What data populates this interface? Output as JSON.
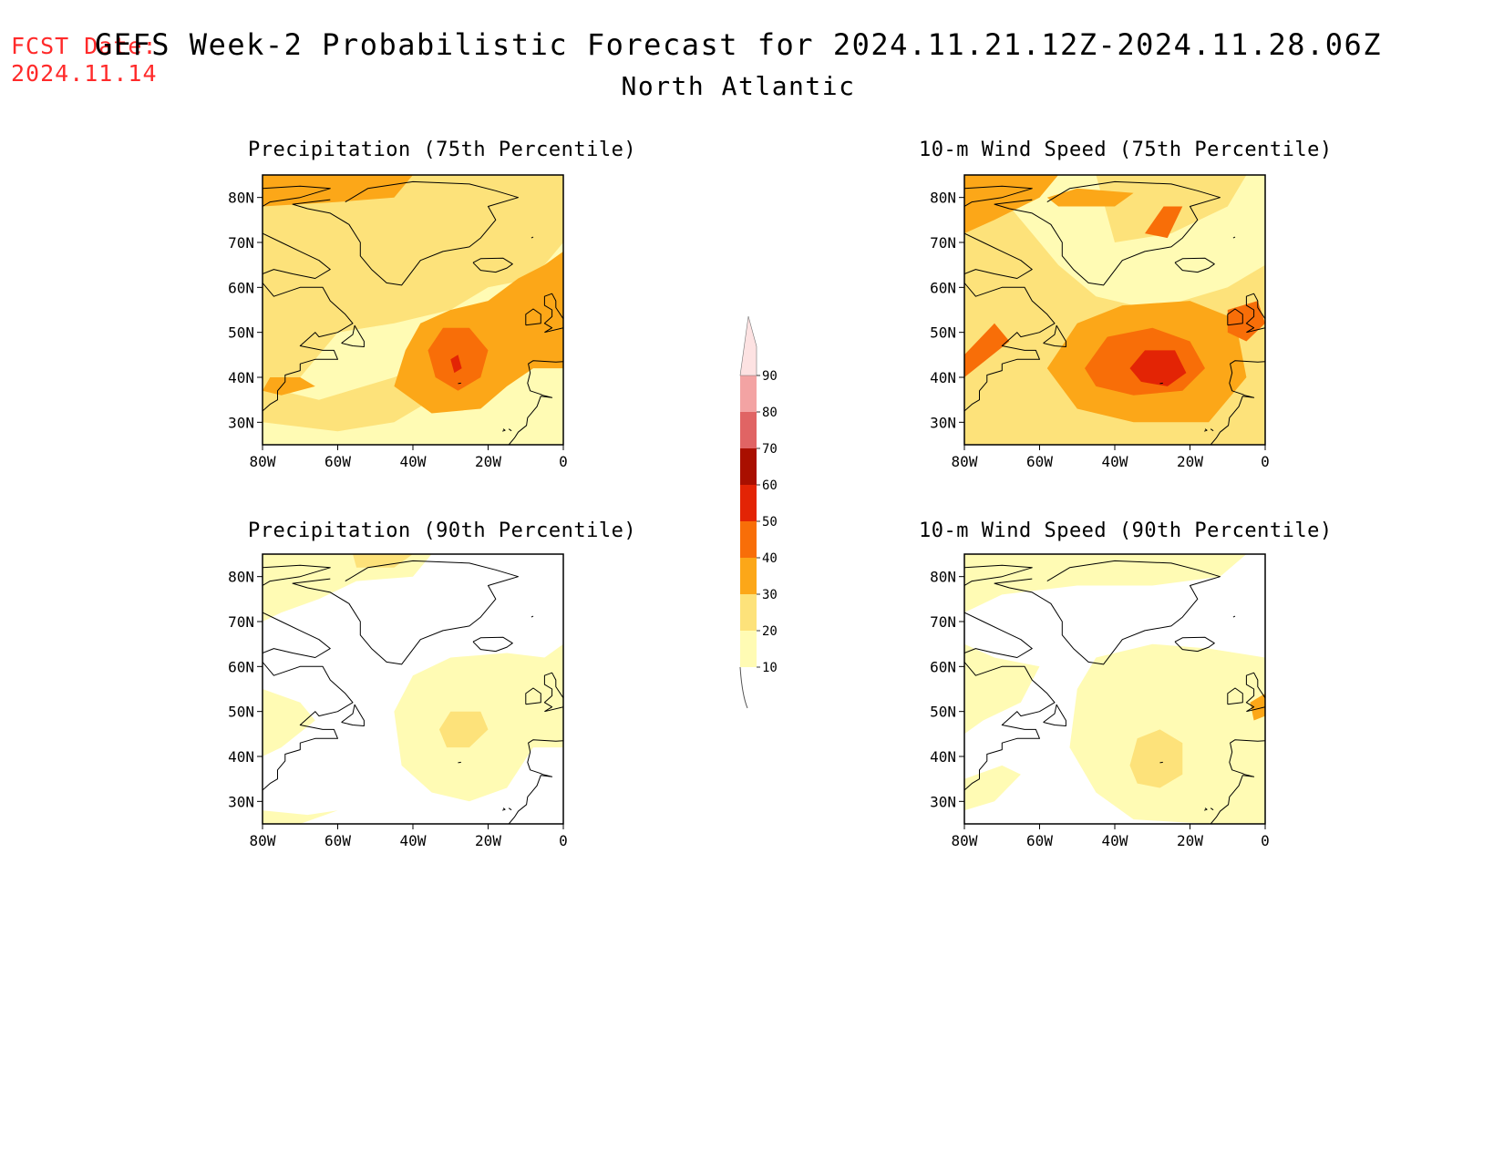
{
  "header": {
    "fcst_label": "FCST Date:",
    "fcst_date": "2024.11.14",
    "title": "GEFS Week-2 Probabilistic Forecast for 2024.11.21.12Z-2024.11.28.06Z",
    "subtitle": "North Atlantic"
  },
  "panels": [
    {
      "id": "precip75",
      "title": "Precipitation (75th Percentile)"
    },
    {
      "id": "wind75",
      "title": "10-m Wind Speed (75th Percentile)"
    },
    {
      "id": "precip90",
      "title": "Precipitation (90th Percentile)"
    },
    {
      "id": "wind90",
      "title": "10-m Wind Speed (90th Percentile)"
    }
  ],
  "axes": {
    "lon_ticks": [
      "80W",
      "60W",
      "40W",
      "20W",
      "0"
    ],
    "lat_ticks": [
      "80N",
      "70N",
      "60N",
      "50N",
      "40N",
      "30N"
    ]
  },
  "colorbar": {
    "levels": [
      "10",
      "20",
      "30",
      "40",
      "50",
      "60",
      "70",
      "80",
      "90"
    ],
    "colors": [
      "#fffbb4",
      "#fde27a",
      "#fca718",
      "#f86e08",
      "#e32405",
      "#a90f00",
      "#e06464",
      "#f3a3a3",
      "#fde2e2"
    ]
  }
}
